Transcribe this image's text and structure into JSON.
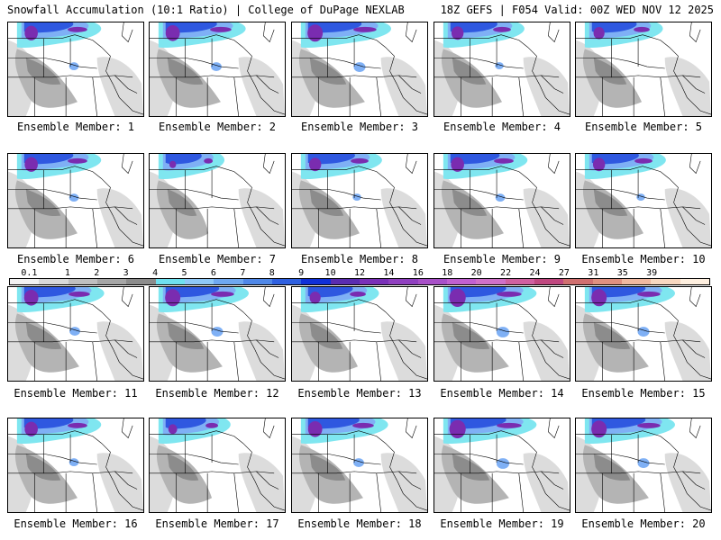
{
  "header": {
    "left": "Snowfall Accumulation (10:1 Ratio) | College of DuPage NEXLAB",
    "right": "18Z GEFS | F054 Valid: 00Z WED NOV 12 2025"
  },
  "members": [
    "Ensemble Member: 1",
    "Ensemble Member: 2",
    "Ensemble Member: 3",
    "Ensemble Member: 4",
    "Ensemble Member: 5",
    "Ensemble Member: 6",
    "Ensemble Member: 7",
    "Ensemble Member: 8",
    "Ensemble Member: 9",
    "Ensemble Member: 10",
    "Ensemble Member: 11",
    "Ensemble Member: 12",
    "Ensemble Member: 13",
    "Ensemble Member: 14",
    "Ensemble Member: 15",
    "Ensemble Member: 16",
    "Ensemble Member: 17",
    "Ensemble Member: 18",
    "Ensemble Member: 19",
    "Ensemble Member: 20"
  ],
  "scale": {
    "labels": [
      "0.1",
      "1",
      "2",
      "3",
      "4",
      "5",
      "6",
      "7",
      "8",
      "9",
      "10",
      "12",
      "14",
      "16",
      "18",
      "20",
      "22",
      "24",
      "27",
      "31",
      "35",
      "39"
    ],
    "colors": [
      "#f2f2f2",
      "#d9d9d9",
      "#bfbfbf",
      "#a6a6a6",
      "#8c8c8c",
      "#6fe0ef",
      "#8fc8f7",
      "#6fa8f0",
      "#5088e8",
      "#2f60e0",
      "#1030d8",
      "#5a2cb0",
      "#7a30b8",
      "#9040c0",
      "#a850c8",
      "#c060d0",
      "#d070c8",
      "#d060a0",
      "#c04880",
      "#d07070",
      "#e09080",
      "#f0b8a0",
      "#f8d8c0",
      "#fff0e0"
    ]
  },
  "palette": {
    "gray_light": "#dcdcdc",
    "gray_mid": "#b4b4b4",
    "gray_dark": "#8c8c8c",
    "cyan": "#7fe6f0",
    "light_blue": "#7fb0f5",
    "blue": "#2f58e0",
    "purple": "#7a2cb0",
    "magenta": "#c050a8"
  }
}
